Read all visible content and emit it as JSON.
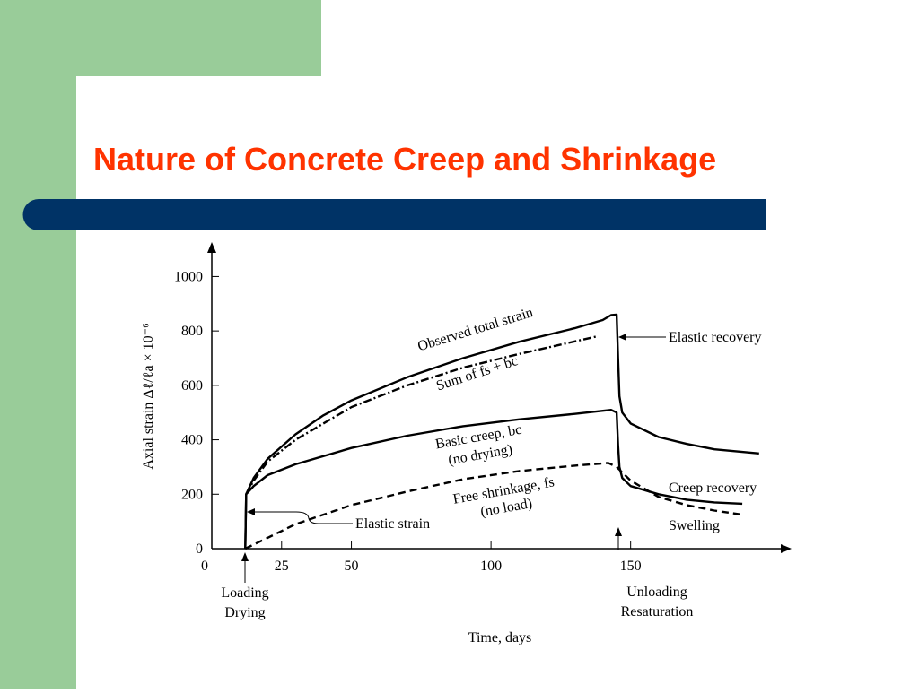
{
  "slide_title": "Nature of Concrete Creep and Shrinkage",
  "chart_data": {
    "type": "line",
    "x_label": "Time, days",
    "y_label": "Axial strain Δℓ/ℓa × 10⁻⁶",
    "xlim": [
      0,
      207
    ],
    "ylim": [
      0,
      1120
    ],
    "xticks": [
      0,
      25,
      50,
      100,
      150
    ],
    "yticks": [
      0,
      200,
      400,
      600,
      800,
      1000
    ],
    "series": [
      {
        "name": "Observed total strain",
        "color": "#000000",
        "dash": "solid",
        "x": [
          12,
          12.3,
          15,
          20,
          30,
          40,
          50,
          70,
          90,
          110,
          130,
          140,
          143,
          145,
          145.5,
          146,
          147,
          150,
          160,
          170,
          180,
          196
        ],
        "values": [
          0,
          200,
          260,
          330,
          420,
          490,
          545,
          630,
          700,
          760,
          810,
          840,
          858,
          860,
          700,
          560,
          500,
          460,
          410,
          385,
          365,
          350
        ]
      },
      {
        "name": "Sum of fs + bc",
        "color": "#000000",
        "dash": "dashdot",
        "x": [
          12.3,
          15,
          20,
          30,
          50,
          70,
          90,
          110,
          138
        ],
        "values": [
          200,
          250,
          320,
          400,
          520,
          600,
          665,
          715,
          780
        ]
      },
      {
        "name": "Basic creep, bc",
        "color": "#000000",
        "dash": "solid",
        "x": [
          12,
          12.3,
          15,
          20,
          30,
          50,
          70,
          90,
          110,
          130,
          143,
          145,
          145.5,
          146,
          147,
          150,
          160,
          170,
          180,
          190
        ],
        "values": [
          0,
          200,
          230,
          270,
          310,
          370,
          415,
          450,
          475,
          495,
          510,
          500,
          380,
          300,
          260,
          230,
          200,
          180,
          170,
          165
        ]
      },
      {
        "name": "Free shrinkage, fs",
        "color": "#000000",
        "dash": "dashed",
        "x": [
          12,
          20,
          30,
          50,
          70,
          90,
          110,
          130,
          142,
          145,
          150,
          160,
          170,
          180,
          190
        ],
        "values": [
          0,
          40,
          90,
          160,
          210,
          255,
          285,
          305,
          315,
          300,
          250,
          190,
          160,
          140,
          125
        ]
      }
    ],
    "annotations": [
      "(no drying)",
      "(no load)",
      "Elastic strain",
      "Elastic recovery",
      "Creep recovery",
      "Swelling",
      "Loading",
      "Drying",
      "Unloading",
      "Resaturation"
    ]
  }
}
